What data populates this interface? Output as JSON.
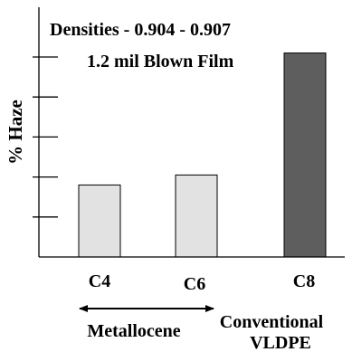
{
  "chart_data": {
    "type": "bar",
    "title": "Densities - 0.904 - 0.907",
    "subtitle": "1.2 mil Blown Film",
    "xlabel": "",
    "ylabel": "% Haze",
    "ylim": [
      0,
      5
    ],
    "categories": [
      "C4",
      "C6",
      "C8"
    ],
    "values": [
      1.8,
      2.05,
      5.1
    ],
    "colors": [
      "#e2e2e2",
      "#e2e2e2",
      "#5e5e5e"
    ],
    "y_ticks": [
      1,
      2,
      3,
      4,
      5
    ],
    "grid": false,
    "groups": [
      {
        "label": "Metallocene",
        "categories": [
          "C4",
          "C6"
        ]
      },
      {
        "label_lines": [
          "Conventional",
          "VLDPE"
        ],
        "categories": [
          "C8"
        ]
      }
    ]
  }
}
